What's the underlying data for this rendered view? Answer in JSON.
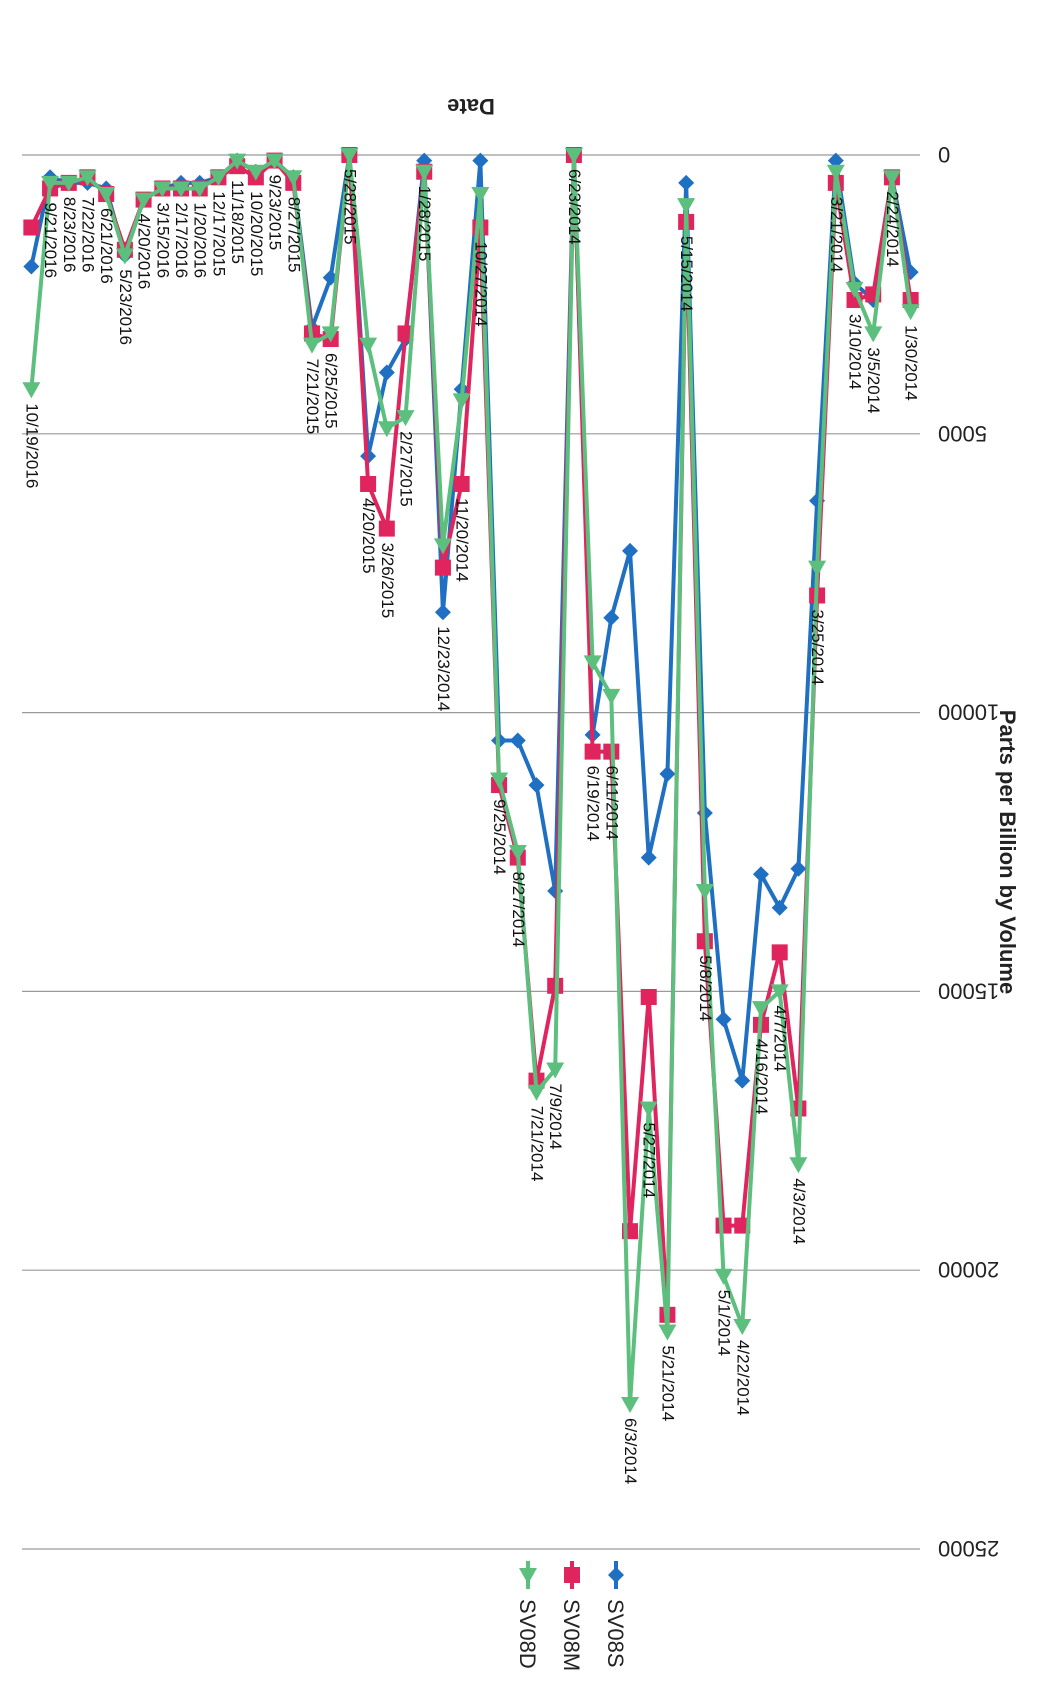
{
  "chart_data": {
    "type": "line",
    "orientation": "rotated-180",
    "title": "",
    "xlabel": "Date",
    "ylabel": "Parts per Billion by Volume",
    "ylim": [
      0,
      25000
    ],
    "y_ticks": [
      0,
      5000,
      10000,
      15000,
      20000,
      25000
    ],
    "grid": true,
    "legend_position": "top",
    "categories": [
      "1/30/2014",
      "2/24/2014",
      "3/5/2014",
      "3/10/2014",
      "3/21/2014",
      "3/25/2014",
      "4/3/2014",
      "4/7/2014",
      "4/16/2014",
      "4/22/2014",
      "5/1/2014",
      "5/8/2014",
      "5/15/2014",
      "5/21/2014",
      "5/27/2014",
      "6/3/2014",
      "6/11/2014",
      "6/19/2014",
      "6/23/2014",
      "7/9/2014",
      "7/21/2014",
      "8/27/2014",
      "9/25/2014",
      "10/27/2014",
      "11/20/2014",
      "12/23/2014",
      "1/28/2015",
      "2/27/2015",
      "3/26/2015",
      "4/20/2015",
      "5/28/2015",
      "6/25/2015",
      "7/21/2015",
      "8/27/2015",
      "9/23/2015",
      "10/20/2015",
      "11/18/2015",
      "12/17/2015",
      "1/20/2016",
      "2/17/2016",
      "3/15/2016",
      "4/20/2016",
      "5/23/2016",
      "6/21/2016",
      "7/22/2016",
      "8/23/2016",
      "9/21/2016",
      "10/19/2016"
    ],
    "series": [
      {
        "name": "SV08S",
        "color": "#1f6fc2",
        "marker": "diamond",
        "values": [
          2100,
          400,
          2600,
          2300,
          100,
          6200,
          12800,
          13500,
          12900,
          16600,
          15500,
          11800,
          500,
          11100,
          12600,
          7100,
          8300,
          10400,
          0,
          13200,
          11300,
          10500,
          10500,
          100,
          4200,
          8200,
          100,
          3300,
          3900,
          5400,
          0,
          2200,
          3100,
          400,
          100,
          300,
          100,
          400,
          500,
          500,
          600,
          800,
          1800,
          600,
          500,
          500,
          400,
          2000
        ]
      },
      {
        "name": "SV08M",
        "color": "#e0245e",
        "marker": "square",
        "values": [
          2600,
          400,
          2500,
          2600,
          500,
          7900,
          17100,
          14300,
          15600,
          19200,
          19200,
          14100,
          1200,
          20800,
          15100,
          19300,
          10700,
          10700,
          0,
          14900,
          16600,
          12600,
          11300,
          1300,
          5900,
          7400,
          300,
          3200,
          6700,
          5900,
          0,
          3300,
          3200,
          500,
          100,
          400,
          200,
          400,
          600,
          600,
          600,
          800,
          1700,
          700,
          400,
          500,
          600,
          1300
        ]
      },
      {
        "name": "SV08D",
        "color": "#5cbf7d",
        "marker": "triangle",
        "values": [
          2800,
          400,
          3200,
          2400,
          300,
          7400,
          18100,
          15000,
          15300,
          21000,
          20100,
          13200,
          900,
          21100,
          17100,
          22400,
          9700,
          9100,
          0,
          16400,
          16800,
          12500,
          11200,
          700,
          4400,
          7000,
          300,
          4700,
          4900,
          3400,
          0,
          3200,
          3400,
          400,
          100,
          300,
          100,
          400,
          600,
          600,
          600,
          800,
          1800,
          700,
          400,
          500,
          500,
          4200
        ]
      }
    ]
  }
}
